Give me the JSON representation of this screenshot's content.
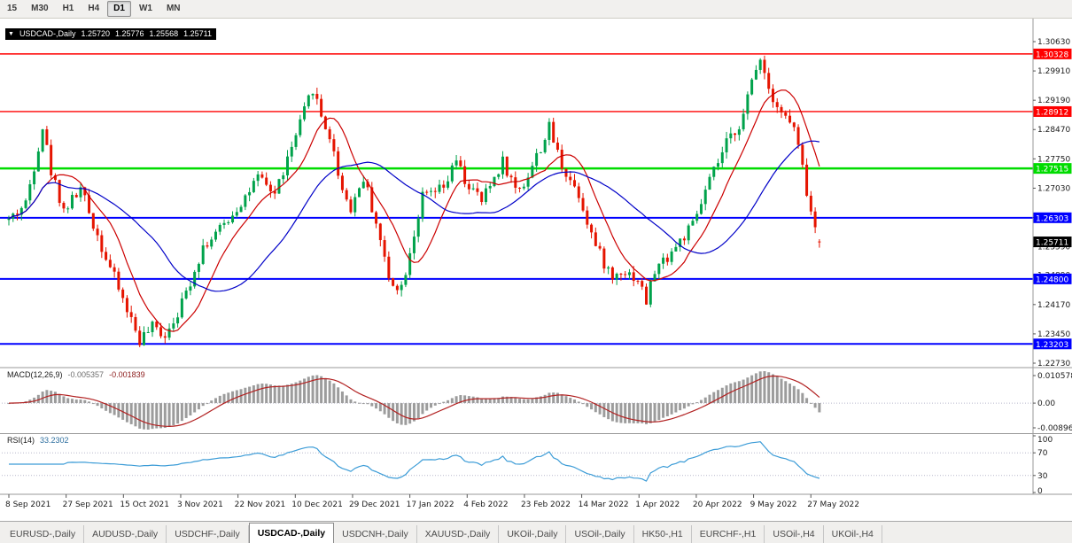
{
  "toolbar": {
    "timeframes": [
      "15",
      "M30",
      "H1",
      "H4",
      "D1",
      "W1",
      "MN"
    ],
    "active": "D1"
  },
  "chart_header": {
    "symbol_period": "USDCAD-,Daily",
    "open": "1.25720",
    "high": "1.25776",
    "low": "1.25568",
    "close": "1.25711"
  },
  "indicators": {
    "macd": {
      "label": "MACD(12,26,9)",
      "value_main": "-0.005357",
      "value_signal": "-0.001839",
      "axis_labels": [
        "0.010578",
        "0.00",
        "-0.00896"
      ],
      "fast": 12,
      "slow": 26,
      "signal": 9
    },
    "rsi": {
      "label": "RSI(14)",
      "value": "33.2302",
      "axis_labels": [
        "100",
        "70",
        "30",
        "0"
      ],
      "period": 14,
      "levels": [
        70,
        30
      ]
    }
  },
  "price_axis": {
    "ticks": [
      "1.30630",
      "1.29910",
      "1.29190",
      "1.28470",
      "1.27750",
      "1.27030",
      "1.26310",
      "1.25590",
      "1.24890",
      "1.24170",
      "1.23450",
      "1.22730"
    ]
  },
  "hlines": [
    {
      "price": 1.30328,
      "label": "1.30328",
      "color": "#FF0000",
      "width": 1.4
    },
    {
      "price": 1.28912,
      "label": "1.28912",
      "color": "#FF0000",
      "width": 1.4
    },
    {
      "price": 1.27515,
      "label": "1.27515",
      "color": "#00DC00",
      "width": 2.4
    },
    {
      "price": 1.26303,
      "label": "1.26303",
      "color": "#0000FF",
      "width": 2
    },
    {
      "price": 1.248,
      "label": "1.24800",
      "color": "#0000FF",
      "width": 2
    },
    {
      "price": 1.23203,
      "label": "1.23203",
      "color": "#0000FF",
      "width": 2
    }
  ],
  "current_price": {
    "label": "1.25711",
    "value": 1.25711
  },
  "time_axis": {
    "labels": [
      "8 Sep 2021",
      "27 Sep 2021",
      "15 Oct 2021",
      "3 Nov 2021",
      "22 Nov 2021",
      "10 Dec 2021",
      "29 Dec 2021",
      "17 Jan 2022",
      "4 Feb 2022",
      "23 Feb 2022",
      "14 Mar 2022",
      "1 Apr 2022",
      "20 Apr 2022",
      "9 May 2022",
      "27 May 2022"
    ]
  },
  "tabs": {
    "items": [
      "EURUSD-,Daily",
      "AUDUSD-,Daily",
      "USDCHF-,Daily",
      "USDCAD-,Daily",
      "USDCNH-,Daily",
      "XAUUSD-,Daily",
      "UKOil-,Daily",
      "USOil-,Daily",
      "HK50-,H1",
      "EURCHF-,H1",
      "USOil-,H4",
      "UKOil-,H4"
    ],
    "active_index": 3
  },
  "colors": {
    "candle_up": "#00A24B",
    "candle_down": "#E51400",
    "ma_fast": "#CC0000",
    "ma_slow": "#0000C8",
    "macd_histogram": "#9C9C9C",
    "macd_signal": "#B22222",
    "rsi_line": "#3C9CD7",
    "axis_text": "#1a1a1a",
    "separator": "#9a9a9a",
    "level_dotted": "#b8b8cc",
    "current_price_bg": "#000000"
  },
  "chart_data": {
    "type": "candlestick",
    "symbol": "USDCAD",
    "timeframe": "Daily",
    "candle_count": 193,
    "last_candle": {
      "open": 1.2572,
      "high": 1.25776,
      "low": 1.25568,
      "close": 1.25711
    },
    "price_range_visible": [
      1.2255,
      1.309
    ],
    "waypoints": [
      [
        0,
        1.2625
      ],
      [
        4,
        1.2665
      ],
      [
        8,
        1.2855
      ],
      [
        10,
        1.2745
      ],
      [
        13,
        1.265
      ],
      [
        17,
        1.27
      ],
      [
        22,
        1.256
      ],
      [
        27,
        1.243
      ],
      [
        31,
        1.233
      ],
      [
        34,
        1.236
      ],
      [
        37,
        1.2345
      ],
      [
        41,
        1.242
      ],
      [
        46,
        1.256
      ],
      [
        50,
        1.26
      ],
      [
        54,
        1.2655
      ],
      [
        59,
        1.2725
      ],
      [
        63,
        1.269
      ],
      [
        67,
        1.28
      ],
      [
        70,
        1.289
      ],
      [
        72,
        1.295
      ],
      [
        74,
        1.288
      ],
      [
        76,
        1.283
      ],
      [
        79,
        1.27
      ],
      [
        81,
        1.2655
      ],
      [
        84,
        1.273
      ],
      [
        87,
        1.262
      ],
      [
        90,
        1.248
      ],
      [
        93,
        1.246
      ],
      [
        95,
        1.255
      ],
      [
        98,
        1.268
      ],
      [
        103,
        1.27
      ],
      [
        106,
        1.277
      ],
      [
        108,
        1.272
      ],
      [
        112,
        1.267
      ],
      [
        117,
        1.277
      ],
      [
        120,
        1.27
      ],
      [
        122,
        1.2715
      ],
      [
        125,
        1.278
      ],
      [
        128,
        1.285
      ],
      [
        131,
        1.276
      ],
      [
        135,
        1.269
      ],
      [
        139,
        1.256
      ],
      [
        143,
        1.248
      ],
      [
        145,
        1.2505
      ],
      [
        149,
        1.248
      ],
      [
        151,
        1.2425
      ],
      [
        153,
        1.25
      ],
      [
        158,
        1.256
      ],
      [
        162,
        1.261
      ],
      [
        166,
        1.272
      ],
      [
        170,
        1.281
      ],
      [
        174,
        1.288
      ],
      [
        176,
        1.2965
      ],
      [
        178,
        1.303
      ],
      [
        180,
        1.295
      ],
      [
        183,
        1.289
      ],
      [
        186,
        1.285
      ],
      [
        188,
        1.275
      ],
      [
        190,
        1.264
      ],
      [
        192,
        1.2571
      ]
    ],
    "moving_averages": [
      {
        "name": "fast-ma",
        "period": 10,
        "color": "#CC0000"
      },
      {
        "name": "slow-ma",
        "period": 30,
        "color": "#0000C8"
      }
    ]
  }
}
